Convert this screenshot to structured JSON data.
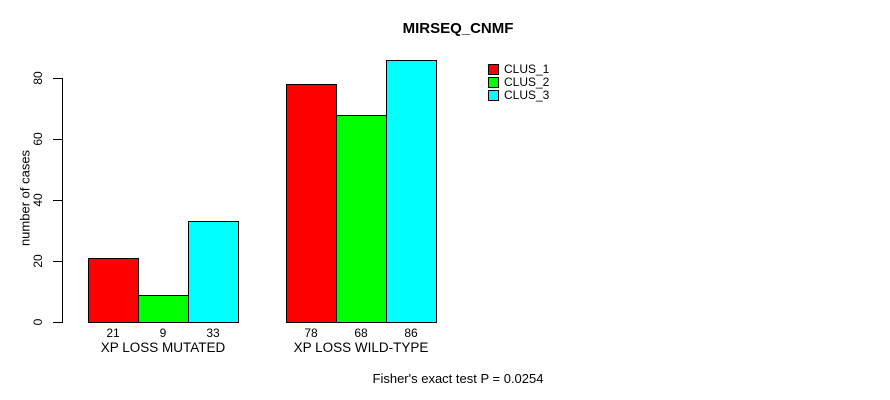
{
  "chart_data": {
    "type": "bar",
    "title": "MIRSEQ_CNMF",
    "xlabel": "",
    "ylabel": "number of cases",
    "categories": [
      "XP LOSS MUTATED",
      "XP LOSS WILD-TYPE"
    ],
    "series": [
      {
        "name": "CLUS_1",
        "color": "#ff0000",
        "values": [
          21,
          78
        ]
      },
      {
        "name": "CLUS_2",
        "color": "#00ff00",
        "values": [
          9,
          68
        ]
      },
      {
        "name": "CLUS_3",
        "color": "#00ffff",
        "values": [
          33,
          86
        ]
      }
    ],
    "show_bar_value_labels": true,
    "yticks": [
      0,
      20,
      40,
      60,
      80
    ],
    "ylim": [
      0,
      86
    ],
    "grid": false,
    "legend_position": "top-right",
    "annotation": "Fisher's exact test P = 0.0254"
  }
}
